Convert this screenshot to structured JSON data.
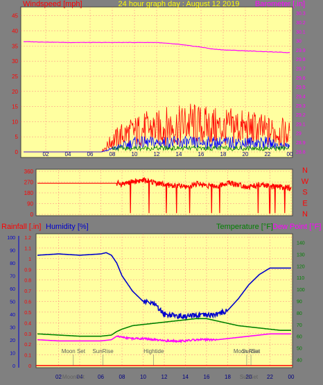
{
  "title": "24 hour graph day : August 12 2019",
  "colors": {
    "background": "#808080",
    "plot_bg": "#ffffa0",
    "grid": "#ff8080",
    "wind": "#ff0000",
    "gust_blue": "#0000ff",
    "green": "#008000",
    "baro": "#ff00ff",
    "humidity": "#0000cc",
    "temperature": "#008000",
    "dewpoint": "#ff00ff",
    "rain": "#ff0000",
    "label_grey": "#606060"
  },
  "chart_data": [
    {
      "type": "line",
      "id": "wind_baro",
      "title": "24 hour graph day : August 12 2019",
      "ylabel_left": "Windspeed [mph]",
      "ylabel_right": "Barometer [.in]",
      "x_ticks": [
        "02",
        "04",
        "06",
        "08",
        "10",
        "12",
        "14",
        "16",
        "18",
        "20",
        "22",
        "00"
      ],
      "y_left_ticks": [
        "0",
        "5",
        "10",
        "15",
        "20",
        "25",
        "30",
        "35",
        "40",
        "45"
      ],
      "y_left_range": [
        0,
        47
      ],
      "y_right_ticks": [
        "28.8",
        "28.9",
        "29",
        "29.1",
        "29.2",
        "29.3",
        "29.4",
        "29.5",
        "29.6",
        "29.7",
        "29.8",
        "29.9",
        "30",
        "30.1",
        "30.2",
        "30.3"
      ],
      "y_right_range": [
        28.75,
        30.35
      ],
      "series": [
        {
          "name": "Barometer [.in]",
          "axis": "right",
          "x": [
            0,
            4,
            8,
            12,
            14,
            16,
            17,
            18,
            20,
            22,
            24
          ],
          "values": [
            29.99,
            29.98,
            29.98,
            29.98,
            29.96,
            29.93,
            29.91,
            29.9,
            29.89,
            29.88,
            29.87
          ]
        },
        {
          "name": "Windspeed [mph]",
          "axis": "left",
          "x": [
            0,
            1,
            2,
            3,
            4,
            5,
            6,
            7,
            8,
            9,
            10,
            11,
            12,
            13,
            14,
            15,
            16,
            17,
            18,
            19,
            20,
            21,
            22,
            23,
            24
          ],
          "values": [
            0,
            0,
            0,
            0,
            0,
            0,
            0,
            0,
            4,
            6,
            7,
            8,
            8,
            9,
            9,
            10,
            9,
            9,
            8,
            9,
            8,
            8,
            7,
            7,
            6
          ]
        },
        {
          "name": "Gust",
          "axis": "left",
          "x": [
            0,
            1,
            2,
            3,
            4,
            5,
            6,
            7,
            8,
            9,
            10,
            11,
            12,
            13,
            14,
            15,
            16,
            17,
            18,
            19,
            20,
            21,
            22,
            23,
            24
          ],
          "values": [
            0,
            0,
            0,
            0,
            0,
            0,
            0,
            0,
            1,
            2,
            3,
            3,
            3,
            3,
            3,
            3,
            3,
            3,
            3,
            3,
            3,
            3,
            3,
            2,
            2
          ]
        }
      ]
    },
    {
      "type": "line",
      "id": "wind_direction",
      "y_ticks": [
        "0",
        "90",
        "180",
        "270",
        "360"
      ],
      "y_range": [
        0,
        360
      ],
      "compass": [
        "N",
        "W",
        "S",
        "E",
        "N"
      ],
      "series": [
        {
          "name": "Wind Direction",
          "x": [
            0,
            2,
            4,
            6,
            7.5,
            8,
            9,
            10,
            11,
            12,
            13,
            14,
            15,
            16,
            17,
            18,
            19,
            20,
            21,
            22,
            23,
            24
          ],
          "values": [
            260,
            260,
            260,
            260,
            260,
            255,
            275,
            285,
            270,
            250,
            240,
            230,
            255,
            245,
            235,
            265,
            250,
            230,
            245,
            235,
            230,
            220
          ]
        }
      ]
    },
    {
      "type": "line",
      "id": "temp_hum_rain",
      "ylabel_rain": "Rainfall [.in]",
      "ylabel_hum": "Humidity [%]",
      "ylabel_temp": "Temperature [°F]",
      "ylabel_dew": "Dew Point [°F]",
      "x_ticks": [
        "02",
        "04",
        "06",
        "08",
        "10",
        "12",
        "14",
        "16",
        "18",
        "20",
        "22",
        "00"
      ],
      "rain_ticks": [
        "0",
        "0.1",
        "0.2",
        "0.3",
        "0.4",
        "0.5",
        "0.6",
        "0.7",
        "0.8",
        "0.9",
        "1",
        "1.1",
        "1.2"
      ],
      "rain_range": [
        0,
        1.2
      ],
      "hum_ticks": [
        "0",
        "10",
        "20",
        "30",
        "40",
        "50",
        "60",
        "70",
        "80",
        "90",
        "100"
      ],
      "hum_range": [
        0,
        100
      ],
      "temp_ticks": [
        "40",
        "50",
        "60",
        "70",
        "80",
        "90",
        "100",
        "110",
        "120",
        "130",
        "140"
      ],
      "temp_range": [
        32,
        145
      ],
      "series": [
        {
          "name": "Humidity [%]",
          "axis": "hum",
          "x": [
            0,
            2,
            4,
            6,
            6.5,
            7,
            7.5,
            8,
            9,
            10,
            11,
            12,
            13,
            14,
            15,
            16,
            17,
            18,
            19,
            20,
            21,
            22,
            23,
            24
          ],
          "values": [
            86,
            87,
            86,
            87,
            88,
            86,
            80,
            70,
            58,
            50,
            48,
            40,
            39,
            38,
            39,
            39,
            40,
            43,
            52,
            63,
            71,
            76,
            76,
            76
          ]
        },
        {
          "name": "Temperature [°F]",
          "axis": "temp",
          "x": [
            0,
            2,
            4,
            6,
            7,
            7.5,
            8,
            9,
            10,
            11,
            12,
            13,
            14,
            15,
            16,
            17,
            18,
            19,
            20,
            21,
            22,
            23,
            24
          ],
          "values": [
            62,
            61,
            60,
            60,
            61,
            64,
            66,
            69,
            70,
            71,
            72,
            73,
            74,
            75,
            75,
            73,
            71,
            69,
            68,
            67,
            66,
            65,
            65
          ]
        },
        {
          "name": "Dew Point [°F]",
          "axis": "temp",
          "x": [
            0,
            2,
            4,
            6,
            7,
            7.5,
            8,
            9,
            10,
            11,
            12,
            13,
            14,
            15,
            16,
            17,
            18,
            19,
            20,
            21,
            22,
            23,
            24
          ],
          "values": [
            57,
            56,
            56,
            56,
            57,
            60,
            59,
            58,
            58,
            57,
            56,
            56,
            56,
            57,
            57,
            57,
            58,
            59,
            60,
            61,
            62,
            62,
            62
          ]
        }
      ],
      "annotations": [
        {
          "label": "Moon Set",
          "x": 3.4,
          "row": 0
        },
        {
          "label": "MoonSet",
          "x": 3.4,
          "row": 1
        },
        {
          "label": "SunRise",
          "x": 6.2,
          "row": 0
        },
        {
          "label": "Hightide",
          "x": 11.0,
          "row": 0
        },
        {
          "label": "SunSet",
          "x": 20.2,
          "row": 0
        },
        {
          "label": "Moon Rise",
          "x": 19.8,
          "row": 0
        },
        {
          "label": "SunSet",
          "x": 20.0,
          "row": 1
        }
      ]
    }
  ]
}
